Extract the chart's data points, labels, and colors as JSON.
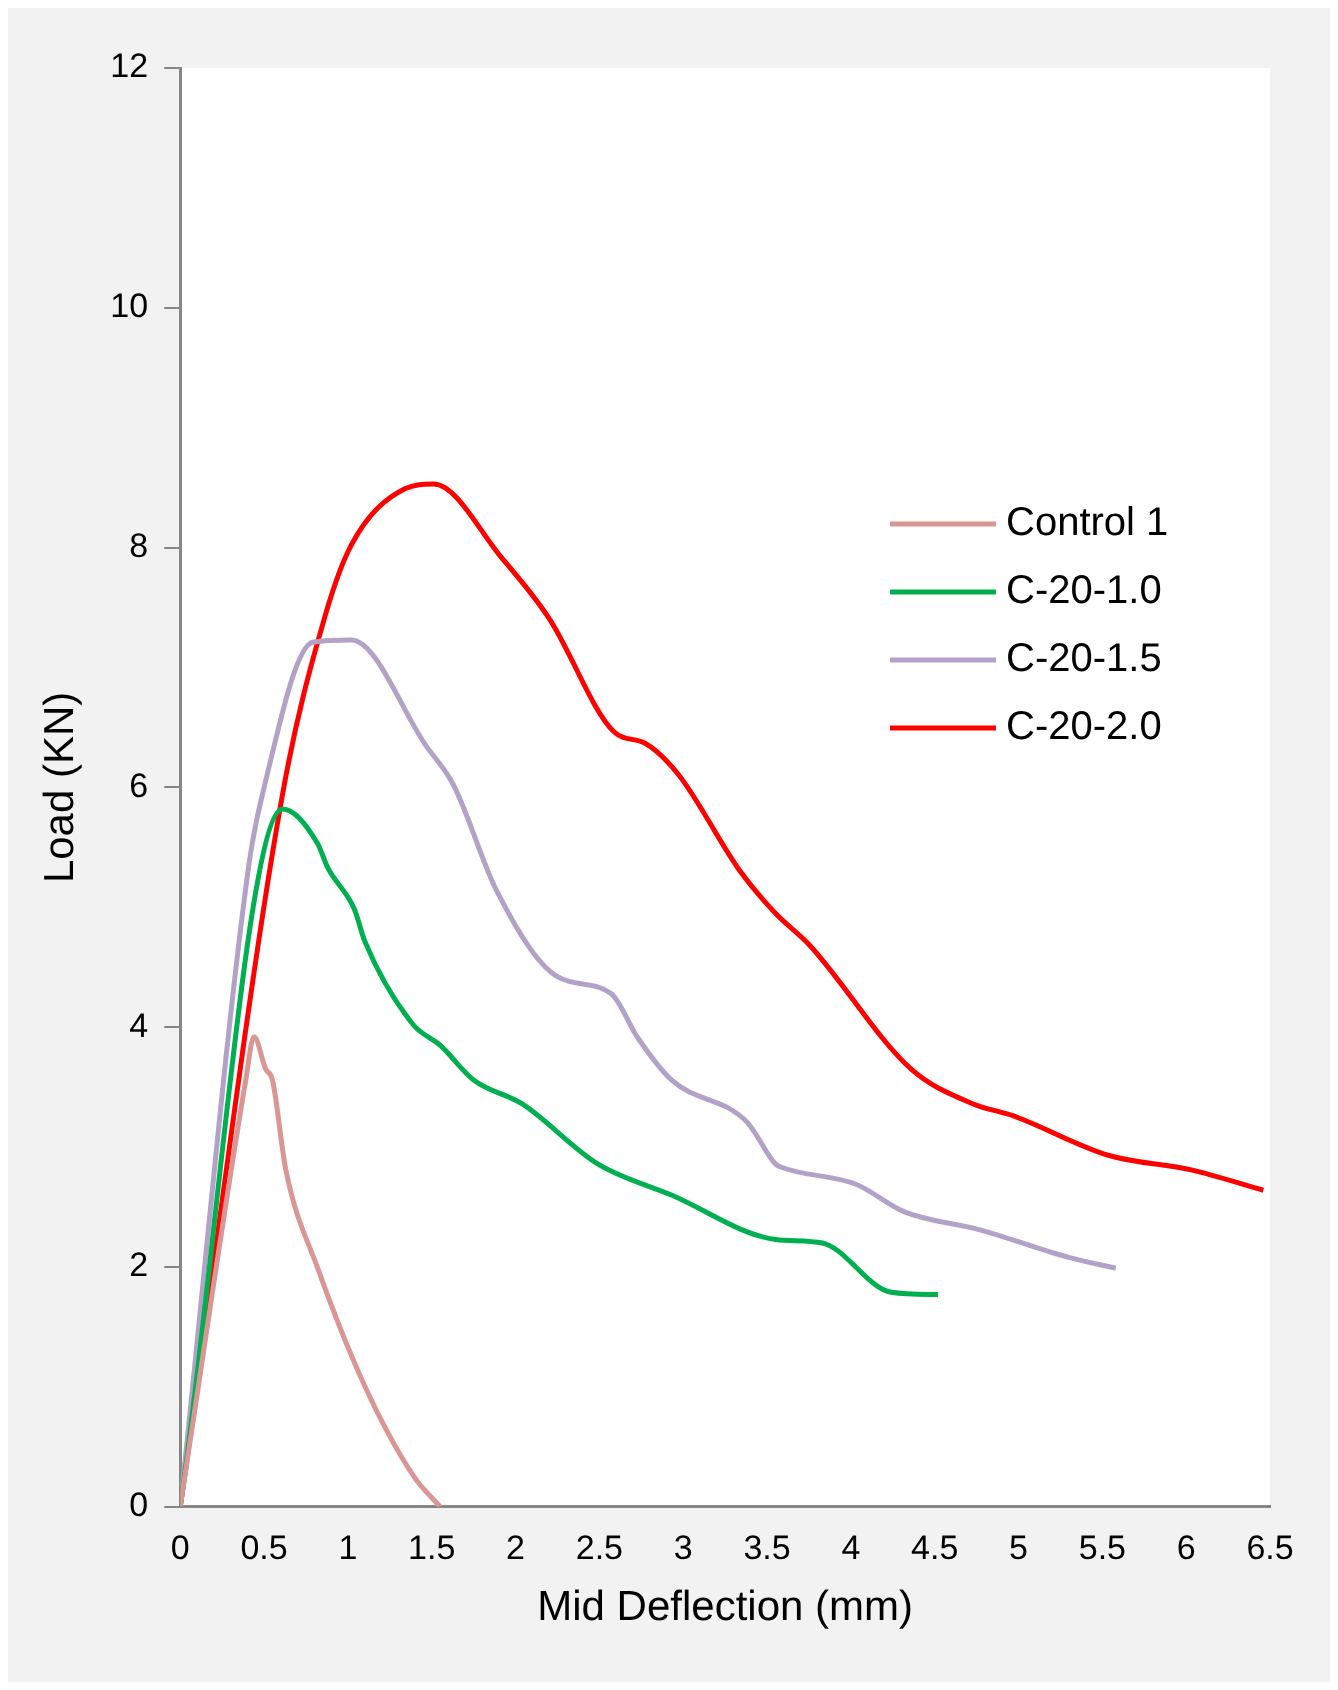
{
  "chart_data": {
    "type": "line",
    "xlabel": "Mid Deflection (mm)",
    "ylabel": "Load (KN)",
    "xlim": [
      0,
      6.5
    ],
    "xticks": [
      0,
      0.5,
      1,
      1.5,
      2,
      2.5,
      3,
      3.5,
      4,
      4.5,
      5,
      5.5,
      6,
      6.5
    ],
    "ylim": [
      0,
      12
    ],
    "yticks": [
      0,
      2,
      4,
      6,
      8,
      10,
      12
    ],
    "grid": false,
    "legend": "right",
    "marker": "none",
    "line_style": "solid",
    "series": [
      {
        "name": "Control 1",
        "color": "#d99694",
        "x": [
          0,
          0.39,
          0.44,
          0.51,
          0.55,
          0.63,
          0.82,
          1.1,
          1.39,
          1.55
        ],
        "values": [
          0,
          3.55,
          3.92,
          3.65,
          3.56,
          2.81,
          1.99,
          1.01,
          0.26,
          0
        ]
      },
      {
        "name": "C-20-1.0",
        "color": "#00b050",
        "x": [
          0,
          0.61,
          0.82,
          0.88,
          1.04,
          1.1,
          1.39,
          1.55,
          1.75,
          2.04,
          2.49,
          2.93,
          3.55,
          3.83,
          4.24,
          4.52
        ],
        "values": [
          0,
          5.82,
          5.53,
          5.33,
          4.98,
          4.72,
          4.02,
          3.85,
          3.56,
          3.36,
          2.86,
          2.6,
          2.23,
          2.2,
          1.79,
          1.77
        ]
      },
      {
        "name": "C-20-1.5",
        "color": "#b3a2c7",
        "x": [
          0,
          0.41,
          0.49,
          0.79,
          1.02,
          1.47,
          1.63,
          1.89,
          2.24,
          2.57,
          2.73,
          2.93,
          3.38,
          3.55,
          3.59,
          4.03,
          4.32,
          4.77,
          5.3,
          5.58
        ],
        "values": [
          0,
          5.36,
          5.94,
          7.21,
          7.23,
          6.34,
          6.02,
          5.13,
          4.43,
          4.28,
          3.91,
          3.56,
          3.21,
          2.86,
          2.83,
          2.69,
          2.46,
          2.31,
          2.08,
          1.99
        ]
      },
      {
        "name": "C-20-2.0",
        "color": "#ff0000",
        "x": [
          0,
          0.61,
          0.86,
          1.02,
          1.34,
          1.51,
          1.92,
          2.2,
          2.59,
          2.77,
          2.97,
          3.34,
          3.55,
          3.75,
          4.36,
          4.73,
          4.97,
          5.54,
          6.03,
          6.46
        ],
        "values": [
          0,
          5.94,
          7.41,
          8.02,
          8.49,
          8.53,
          7.91,
          7.41,
          6.46,
          6.37,
          6.11,
          5.3,
          4.95,
          4.69,
          3.65,
          3.36,
          3.26,
          2.93,
          2.81,
          2.64
        ]
      }
    ]
  }
}
